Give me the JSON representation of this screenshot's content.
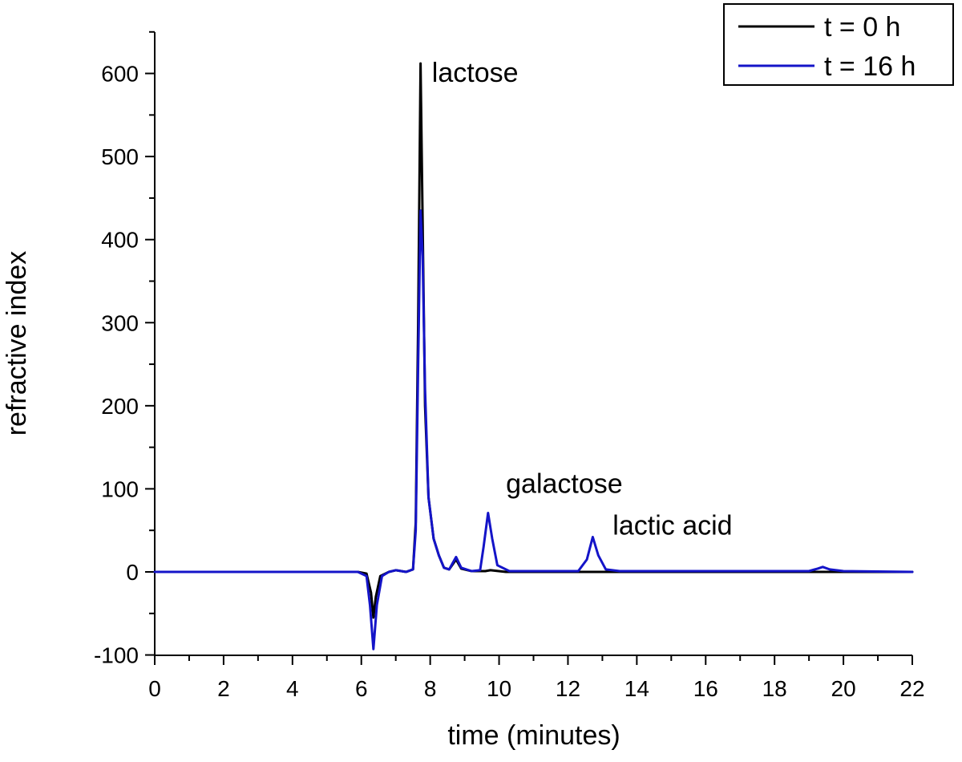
{
  "chart_data": {
    "type": "line",
    "xlabel": "time (minutes)",
    "ylabel": "refractive index",
    "xlim": [
      0,
      22
    ],
    "ylim": [
      -100,
      650
    ],
    "xticks": [
      0,
      2,
      4,
      6,
      8,
      10,
      12,
      14,
      16,
      18,
      20,
      22
    ],
    "yticks": [
      -100,
      0,
      100,
      200,
      300,
      400,
      500,
      600
    ],
    "grid": false,
    "legend_position": "top-right",
    "series": [
      {
        "name": "t = 0 h",
        "color": "#000000",
        "points": [
          [
            0,
            0
          ],
          [
            5.9,
            0
          ],
          [
            6.15,
            -2
          ],
          [
            6.28,
            -25
          ],
          [
            6.35,
            -55
          ],
          [
            6.42,
            -30
          ],
          [
            6.55,
            -5
          ],
          [
            6.8,
            0
          ],
          [
            7.0,
            2
          ],
          [
            7.3,
            0
          ],
          [
            7.5,
            3
          ],
          [
            7.58,
            60
          ],
          [
            7.65,
            300
          ],
          [
            7.72,
            612
          ],
          [
            7.78,
            420
          ],
          [
            7.85,
            200
          ],
          [
            7.95,
            90
          ],
          [
            8.1,
            40
          ],
          [
            8.25,
            20
          ],
          [
            8.4,
            5
          ],
          [
            8.55,
            3
          ],
          [
            8.75,
            15
          ],
          [
            8.9,
            4
          ],
          [
            9.2,
            1
          ],
          [
            9.6,
            1
          ],
          [
            9.75,
            2
          ],
          [
            10.2,
            0
          ],
          [
            22,
            0
          ]
        ]
      },
      {
        "name": "t = 16 h",
        "color": "#1414c8",
        "points": [
          [
            0,
            0
          ],
          [
            5.9,
            0
          ],
          [
            6.15,
            -5
          ],
          [
            6.25,
            -40
          ],
          [
            6.35,
            -93
          ],
          [
            6.45,
            -40
          ],
          [
            6.6,
            -5
          ],
          [
            6.8,
            0
          ],
          [
            7.0,
            2
          ],
          [
            7.3,
            0
          ],
          [
            7.5,
            3
          ],
          [
            7.58,
            50
          ],
          [
            7.65,
            250
          ],
          [
            7.72,
            435
          ],
          [
            7.78,
            380
          ],
          [
            7.85,
            220
          ],
          [
            7.95,
            90
          ],
          [
            8.1,
            40
          ],
          [
            8.25,
            20
          ],
          [
            8.4,
            5
          ],
          [
            8.55,
            3
          ],
          [
            8.75,
            18
          ],
          [
            8.9,
            5
          ],
          [
            9.2,
            1
          ],
          [
            9.45,
            2
          ],
          [
            9.55,
            30
          ],
          [
            9.68,
            71
          ],
          [
            9.8,
            40
          ],
          [
            9.95,
            8
          ],
          [
            10.3,
            1
          ],
          [
            12.3,
            1
          ],
          [
            12.55,
            15
          ],
          [
            12.72,
            42
          ],
          [
            12.88,
            20
          ],
          [
            13.1,
            3
          ],
          [
            13.5,
            1
          ],
          [
            19.0,
            1
          ],
          [
            19.25,
            4
          ],
          [
            19.4,
            6
          ],
          [
            19.6,
            3
          ],
          [
            20.0,
            1
          ],
          [
            22,
            0
          ]
        ]
      }
    ],
    "annotations": [
      {
        "text": "lactose",
        "x": 8.05,
        "y": 590
      },
      {
        "text": "galactose",
        "x": 10.2,
        "y": 95
      },
      {
        "text": "lactic acid",
        "x": 13.3,
        "y": 45
      }
    ]
  }
}
